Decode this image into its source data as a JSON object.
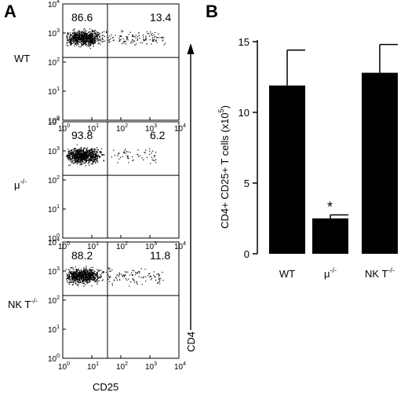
{
  "panel_a": {
    "letter": "A",
    "x_title": "CD25",
    "y_title": "CD4",
    "tick_base": "10",
    "tick_exponents": [
      "0",
      "1",
      "2",
      "3",
      "4"
    ],
    "plots": [
      {
        "label": "WT",
        "label_sup": "",
        "upper_left": "86.6",
        "upper_right": "13.4",
        "population_fraction_right": 0.134
      },
      {
        "label": "μ",
        "label_sup": "-/-",
        "upper_left": "93.8",
        "upper_right": "6.2",
        "population_fraction_right": 0.062
      },
      {
        "label": "NK T",
        "label_sup": "-/-",
        "upper_left": "88.2",
        "upper_right": "11.8",
        "population_fraction_right": 0.118
      }
    ]
  },
  "chart_data": {
    "type": "bar",
    "panel_letter": "B",
    "title": "",
    "xlabel": "",
    "ylabel": "CD4+ CD25+ T cells (x10",
    "ylabel_sup": "5",
    "ylabel_close": ")",
    "categories": [
      "WT",
      "μ",
      "NK T"
    ],
    "category_sups": [
      "",
      "-/-",
      "-/-"
    ],
    "values": [
      11.9,
      2.5,
      12.8
    ],
    "errors": [
      2.5,
      0.25,
      2.0
    ],
    "significance": [
      "",
      "*",
      ""
    ],
    "ylim": [
      0,
      15
    ],
    "yticks": [
      "0",
      "5",
      "10",
      "15"
    ],
    "bar_color": "#000000"
  }
}
